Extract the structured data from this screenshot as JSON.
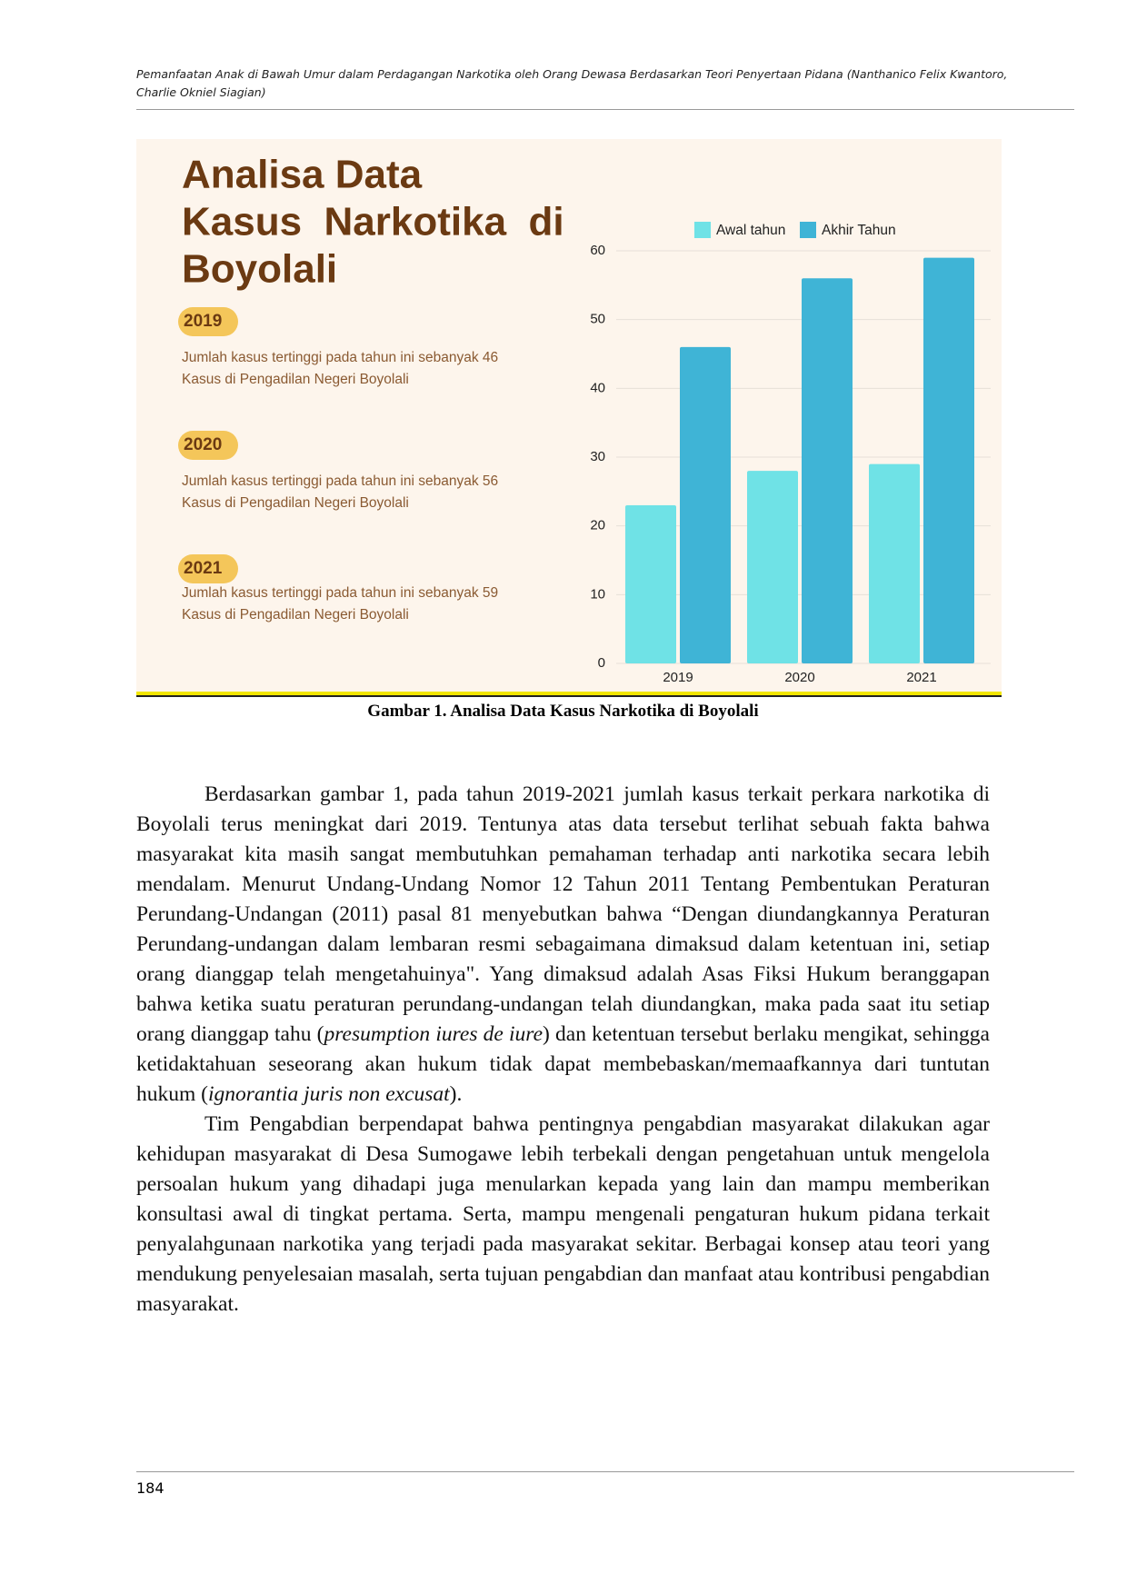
{
  "header": {
    "lines": [
      "Pemanfaatan Anak di Bawah Umur dalam Perdagangan Narkotika oleh Orang Dewasa Berdasarkan Teori Penyertaan Pidana (Nanthanico Felix Kwantoro,",
      "Charlie Okniel Siagian)"
    ]
  },
  "figure_panel": {
    "title_lines": [
      "Analisa Data",
      "Kasus  Narkotika  di",
      "Boyolali"
    ],
    "items": [
      {
        "year": "2019",
        "lines": [
          "Jumlah kasus tertinggi pada tahun ini sebanyak 46",
          "Kasus di Pengadilan Negeri Boyolali"
        ]
      },
      {
        "year": "2020",
        "lines": [
          "Jumlah kasus tertinggi pada tahun ini sebanyak 56",
          "Kasus di Pengadilan Negeri Boyolali"
        ]
      },
      {
        "year": "2021",
        "lines": [
          "Jumlah kasus tertinggi pada tahun ini sebanyak 59",
          "Kasus di Pengadilan Negeri Boyolali"
        ]
      }
    ]
  },
  "chart_data": {
    "type": "bar",
    "categories": [
      "2019",
      "2020",
      "2021"
    ],
    "series": [
      {
        "name": "Awal tahun",
        "color": "#6fe2e6",
        "values": [
          23,
          28,
          29
        ]
      },
      {
        "name": "Akhir Tahun",
        "color": "#3fb4d6",
        "values": [
          46,
          56,
          59
        ]
      }
    ],
    "ylim": [
      0,
      60
    ],
    "yticks": [
      0,
      10,
      20,
      30,
      40,
      50,
      60
    ],
    "grid": true
  },
  "caption": "Gambar 1. Analisa Data Kasus Narkotika di Boyolali",
  "paragraphs": [
    [
      "Berdasarkan gambar 1, pada tahun 2019-2021 jumlah kasus terkait perkara narkotika di Boyolali terus meningkat dari 2019. Tentunya atas data tersebut terlihat sebuah fakta bahwa masyarakat kita masih sangat membutuhkan pemahaman terhadap anti narkotika secara lebih mendalam. Menurut Undang-Undang Nomor 12 Tahun 2011 Tentang Pembentukan Peraturan Perundang-Undangan (2011) pasal 81 menyebutkan bahwa “Dengan diundangkannya Peraturan Perundang-undangan dalam lembaran resmi sebagaimana dimaksud dalam ketentuan ini, setiap orang dianggap telah mengetahuinya\". Yang dimaksud adalah Asas Fiksi Hukum beranggapan bahwa ketika suatu peraturan perundang-undangan telah diundangkan, maka pada saat itu setiap orang dianggap tahu (",
      "presumption iures de iure",
      ") dan ketentuan tersebut berlaku mengikat, sehingga ketidaktahuan seseorang akan hukum tidak dapat membebaskan/memaafkannya dari tuntutan hukum (",
      "ignorantia juris non excusat",
      ")."
    ],
    [
      "Tim Pengabdian berpendapat bahwa pentingnya pengabdian masyarakat dilakukan agar kehidupan masyarakat di Desa Sumogawe lebih terbekali dengan pengetahuan untuk mengelola persoalan hukum yang dihadapi juga menularkan kepada yang lain dan mampu memberikan konsultasi awal di tingkat pertama. Serta, mampu mengenali pengaturan hukum pidana terkait penyalahgunaan narkotika yang terjadi pada masyarakat sekitar. Berbagai konsep atau teori yang mendukung penyelesaian masalah, serta tujuan pengabdian dan manfaat atau kontribusi pengabdian masyarakat."
    ]
  ],
  "page_number": "184"
}
